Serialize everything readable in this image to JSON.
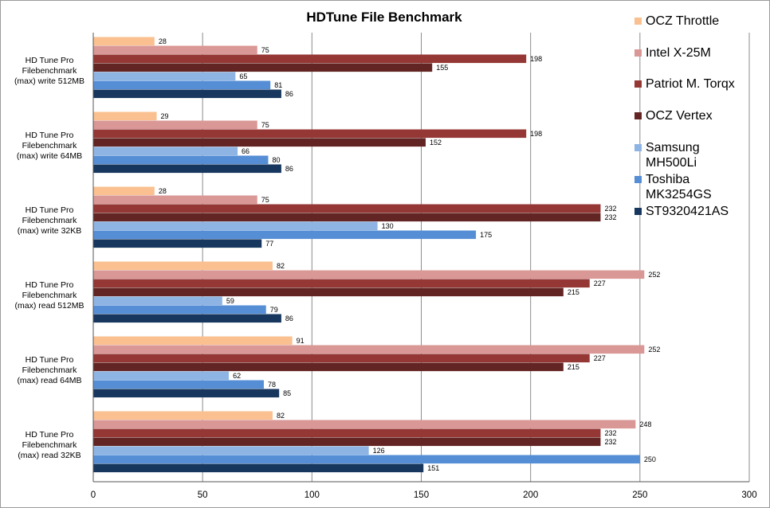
{
  "chart_data": {
    "type": "bar",
    "orientation": "horizontal",
    "title": "HDTune File Benchmark",
    "xlim": [
      0,
      300
    ],
    "x_ticks": [
      0,
      50,
      100,
      150,
      200,
      250,
      300
    ],
    "grid": true,
    "legend_position": "right",
    "categories": [
      [
        "HD Tune Pro",
        "Filebenchmark",
        "(max) write 512MB"
      ],
      [
        "HD Tune Pro",
        "Filebenchmark",
        "(max) write 64MB"
      ],
      [
        "HD Tune Pro",
        "Filebenchmark",
        "(max) write 32KB"
      ],
      [
        "HD Tune Pro",
        "Filebenchmark",
        "(max) read 512MB"
      ],
      [
        "HD Tune Pro",
        "Filebenchmark",
        "(max) read 64MB"
      ],
      [
        "HD Tune Pro",
        "Filebenchmark",
        "(max) read 32KB"
      ]
    ],
    "series": [
      {
        "name": [
          "OCZ Throttle"
        ],
        "color": "#FAC090",
        "values": [
          28,
          29,
          28,
          82,
          91,
          82
        ]
      },
      {
        "name": [
          "Intel X-25M"
        ],
        "color": "#D99795",
        "values": [
          75,
          75,
          75,
          252,
          252,
          248
        ]
      },
      {
        "name": [
          "Patriot M. Torqx"
        ],
        "color": "#953735",
        "values": [
          198,
          198,
          232,
          227,
          227,
          232
        ]
      },
      {
        "name": [
          "OCZ Vertex"
        ],
        "color": "#632523",
        "values": [
          155,
          152,
          232,
          215,
          215,
          232
        ]
      },
      {
        "name": [
          "Samsung",
          "MH500Li"
        ],
        "color": "#8EB4E3",
        "values": [
          65,
          66,
          130,
          59,
          62,
          126
        ]
      },
      {
        "name": [
          "Toshiba",
          "MK3254GS"
        ],
        "color": "#558ED5",
        "values": [
          81,
          80,
          175,
          79,
          78,
          250
        ]
      },
      {
        "name": [
          "ST9320421AS"
        ],
        "color": "#17375E",
        "values": [
          86,
          86,
          77,
          86,
          85,
          151
        ]
      }
    ]
  }
}
